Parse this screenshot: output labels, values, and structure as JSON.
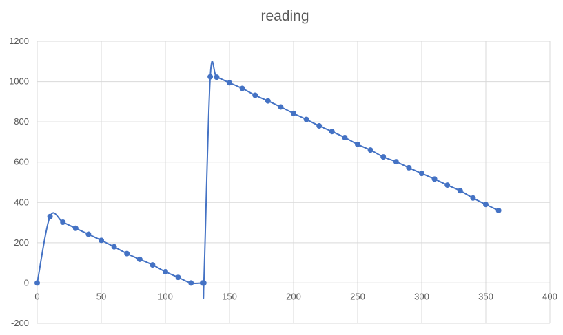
{
  "chart_data": {
    "type": "scatter",
    "title": "reading",
    "xlabel": "",
    "ylabel": "",
    "xlim": [
      0,
      400
    ],
    "ylim": [
      -200,
      1200
    ],
    "xticks": [
      0,
      50,
      100,
      150,
      200,
      250,
      300,
      350,
      400
    ],
    "yticks": [
      -200,
      0,
      200,
      400,
      600,
      800,
      1000,
      1200
    ],
    "grid": true,
    "legend": "none",
    "smooth_lines": true,
    "series": [
      {
        "color": "#4472c4",
        "points": [
          [
            0,
            0
          ],
          [
            10,
            330
          ],
          [
            20,
            302
          ],
          [
            30,
            272
          ],
          [
            40,
            242
          ],
          [
            50,
            212
          ],
          [
            60,
            180
          ],
          [
            70,
            146
          ],
          [
            80,
            118
          ],
          [
            90,
            90
          ],
          [
            100,
            56
          ],
          [
            110,
            28
          ],
          [
            120,
            0
          ],
          [
            129,
            0
          ],
          [
            130,
            0
          ],
          [
            135,
            1024
          ],
          [
            140,
            1022
          ],
          [
            150,
            994
          ],
          [
            160,
            966
          ],
          [
            170,
            932
          ],
          [
            180,
            904
          ],
          [
            190,
            874
          ],
          [
            200,
            842
          ],
          [
            210,
            812
          ],
          [
            220,
            780
          ],
          [
            230,
            752
          ],
          [
            240,
            722
          ],
          [
            250,
            688
          ],
          [
            260,
            660
          ],
          [
            270,
            626
          ],
          [
            280,
            602
          ],
          [
            290,
            572
          ],
          [
            300,
            544
          ],
          [
            310,
            516
          ],
          [
            320,
            486
          ],
          [
            330,
            458
          ],
          [
            340,
            422
          ],
          [
            350,
            390
          ],
          [
            360,
            360
          ]
        ]
      }
    ]
  }
}
